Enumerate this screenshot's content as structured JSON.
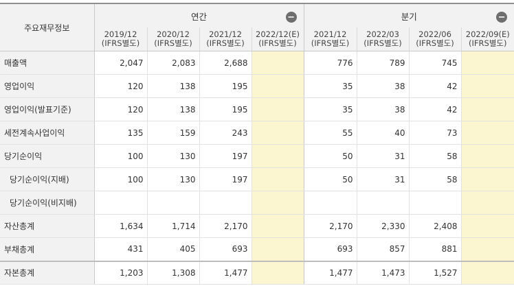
{
  "header": {
    "row_label": "주요재무정보",
    "annual_label": "연간",
    "quarter_label": "분기",
    "toggle_symbol": "−",
    "annual_periods": [
      {
        "date": "2019/12",
        "basis": "(IFRS별도)"
      },
      {
        "date": "2020/12",
        "basis": "(IFRS별도)"
      },
      {
        "date": "2021/12",
        "basis": "(IFRS별도)"
      },
      {
        "date": "2022/12(E)",
        "basis": "(IFRS별도)"
      }
    ],
    "quarter_periods": [
      {
        "date": "2021/12",
        "basis": "(IFRS별도)"
      },
      {
        "date": "2022/03",
        "basis": "(IFRS별도)"
      },
      {
        "date": "2022/06",
        "basis": "(IFRS별도)"
      },
      {
        "date": "2022/09(E)",
        "basis": "(IFRS별도)"
      }
    ]
  },
  "rows": [
    {
      "label": "매출액",
      "annual": [
        "2,047",
        "2,083",
        "2,688",
        ""
      ],
      "quarter": [
        "776",
        "789",
        "745",
        ""
      ]
    },
    {
      "label": "영업이익",
      "annual": [
        "120",
        "138",
        "195",
        ""
      ],
      "quarter": [
        "35",
        "38",
        "42",
        ""
      ]
    },
    {
      "label": "영업이익(발표기준)",
      "annual": [
        "120",
        "138",
        "195",
        ""
      ],
      "quarter": [
        "35",
        "38",
        "42",
        ""
      ]
    },
    {
      "label": "세전계속사업이익",
      "annual": [
        "135",
        "159",
        "243",
        ""
      ],
      "quarter": [
        "55",
        "40",
        "73",
        ""
      ]
    },
    {
      "label": "당기순이익",
      "annual": [
        "100",
        "130",
        "197",
        ""
      ],
      "quarter": [
        "50",
        "31",
        "58",
        ""
      ]
    },
    {
      "label": "당기순이익(지배)",
      "annual": [
        "100",
        "130",
        "197",
        ""
      ],
      "quarter": [
        "50",
        "31",
        "58",
        ""
      ]
    },
    {
      "label": "당기순이익(비지배)",
      "annual": [
        "",
        "",
        "",
        ""
      ],
      "quarter": [
        "",
        "",
        "",
        ""
      ]
    },
    {
      "label": "자산총계",
      "annual": [
        "1,634",
        "1,714",
        "2,170",
        ""
      ],
      "quarter": [
        "2,170",
        "2,330",
        "2,408",
        ""
      ]
    },
    {
      "label": "부채총계",
      "annual": [
        "431",
        "405",
        "693",
        ""
      ],
      "quarter": [
        "693",
        "857",
        "881",
        ""
      ]
    },
    {
      "label": "자본총계",
      "annual": [
        "1,203",
        "1,308",
        "1,477",
        ""
      ],
      "quarter": [
        "1,477",
        "1,473",
        "1,527",
        ""
      ]
    }
  ]
}
